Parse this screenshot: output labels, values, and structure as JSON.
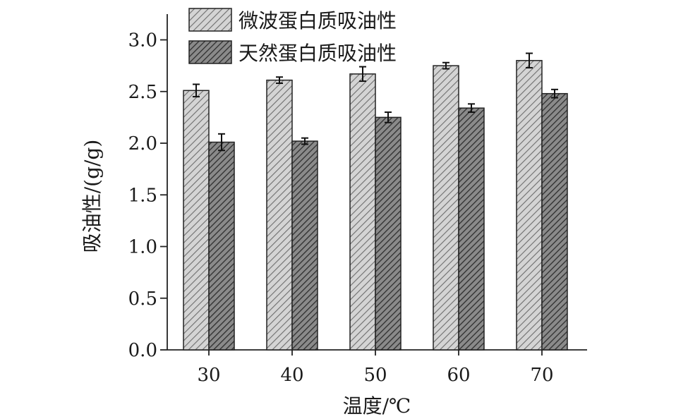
{
  "chart_data": {
    "type": "bar",
    "xlabel": "温度/℃",
    "ylabel": "吸油性/(g/g)",
    "categories": [
      "30",
      "40",
      "50",
      "60",
      "70"
    ],
    "ylim": [
      0,
      3.2
    ],
    "yticks": [
      "0.0",
      "0.5",
      "1.0",
      "1.5",
      "2.0",
      "2.5",
      "3.0"
    ],
    "grid": false,
    "legend_position": "top",
    "series": [
      {
        "name": "微波蛋白质吸油性",
        "values": [
          2.51,
          2.61,
          2.67,
          2.75,
          2.8
        ],
        "errors": [
          0.06,
          0.03,
          0.07,
          0.03,
          0.07
        ],
        "color": "#bdbdbd",
        "pattern": "light-diagonal-hatch"
      },
      {
        "name": "天然蛋白质吸油性",
        "values": [
          2.01,
          2.02,
          2.25,
          2.34,
          2.48
        ],
        "errors": [
          0.08,
          0.03,
          0.05,
          0.04,
          0.04
        ],
        "color": "#6a6a6a",
        "pattern": "dark-diagonal-hatch"
      }
    ]
  }
}
